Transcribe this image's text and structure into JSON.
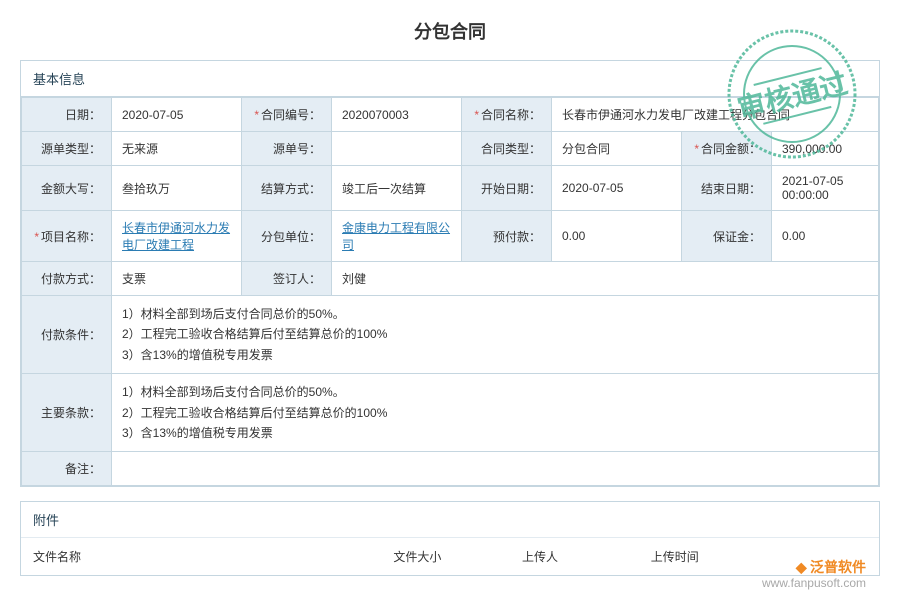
{
  "title": "分包合同",
  "stamp_text": "审核通过",
  "stamp_color": "#4fb89a",
  "panels": {
    "basic": {
      "header": "基本信息"
    },
    "attach": {
      "header": "附件"
    }
  },
  "labels": {
    "date": "日期：",
    "contract_no": "合同编号：",
    "contract_no_req": true,
    "contract_name": "合同名称：",
    "contract_name_req": true,
    "source_type": "源单类型：",
    "source_no": "源单号：",
    "contract_type": "合同类型：",
    "amount": "合同金额：",
    "amount_req": true,
    "amount_upper": "金额大写：",
    "settle_mode": "结算方式：",
    "start_date": "开始日期：",
    "end_date": "结束日期：",
    "project": "项目名称：",
    "project_req": true,
    "sub_unit": "分包单位：",
    "prepay": "预付款：",
    "deposit": "保证金：",
    "pay_method": "付款方式：",
    "signer": "签订人：",
    "pay_cond": "付款条件：",
    "main_terms": "主要条款：",
    "remark": "备注："
  },
  "values": {
    "date": "2020-07-05",
    "contract_no": "2020070003",
    "contract_name": "长春市伊通河水力发电厂改建工程分包合同",
    "source_type": "无来源",
    "source_no": "",
    "contract_type": "分包合同",
    "amount": "390,000.00",
    "amount_upper": "叁拾玖万",
    "settle_mode": "竣工后一次结算",
    "start_date": "2020-07-05",
    "end_date": "2021-07-05 00:00:00",
    "project": "长春市伊通河水力发电厂改建工程",
    "sub_unit": "金康电力工程有限公司",
    "prepay": "0.00",
    "deposit": "0.00",
    "pay_method": "支票",
    "signer": "刘健",
    "pay_cond": "1）材料全部到场后支付合同总价的50%。\n2）工程完工验收合格结算后付至结算总价的100%\n3）含13%的增值税专用发票",
    "main_terms": "1）材料全部到场后支付合同总价的50%。\n2）工程完工验收合格结算后付至结算总价的100%\n3）含13%的增值税专用发票",
    "remark": ""
  },
  "attach_cols": {
    "filename": "文件名称",
    "filesize": "文件大小",
    "uploader": "上传人",
    "uploadtime": "上传时间"
  },
  "watermark": {
    "brand": "泛普软件",
    "url": "www.fanpusoft.com"
  },
  "colors": {
    "border": "#c5d6e0",
    "label_bg": "#e4edf4",
    "link": "#2b7cb3",
    "required": "#d9534f"
  }
}
